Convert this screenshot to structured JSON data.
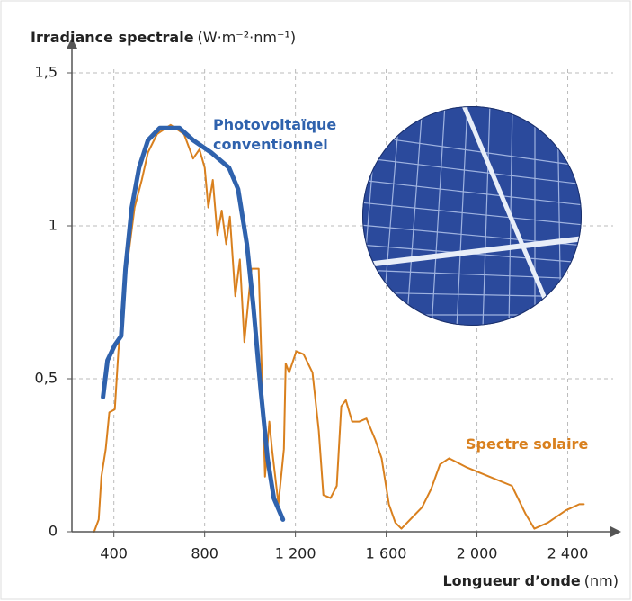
{
  "chart_data": {
    "type": "line",
    "y_label": "Irradiance spectrale",
    "y_unit": "(W·m⁻²·nm⁻¹)",
    "x_label": "Longueur d’onde",
    "x_unit": "(nm)",
    "xlim": [
      215,
      2600
    ],
    "ylim": [
      0,
      1.6
    ],
    "xticks": [
      400,
      800,
      {
        "value": 1200,
        "label": "1 200"
      },
      {
        "value": 1600,
        "label": "1 600"
      },
      {
        "value": 2000,
        "label": "2 000"
      },
      {
        "value": 2400,
        "label": "2 400"
      }
    ],
    "yticks": [
      {
        "value": 0,
        "label": "0"
      },
      {
        "value": 0.5,
        "label": "0,5"
      },
      {
        "value": 1,
        "label": "1"
      },
      {
        "value": 1.5,
        "label": "1,5"
      }
    ],
    "grid": true,
    "series": [
      {
        "name": "Spectre solaire",
        "color": "#d9801e",
        "x": [
          313,
          333,
          345,
          364,
          380,
          404,
          420,
          451,
          491,
          523,
          550,
          590,
          650,
          709,
          749,
          777,
          800,
          816,
          836,
          856,
          875,
          895,
          911,
          935,
          955,
          975,
          1006,
          1038,
          1066,
          1085,
          1097,
          1125,
          1149,
          1157,
          1172,
          1204,
          1236,
          1275,
          1303,
          1323,
          1355,
          1382,
          1402,
          1422,
          1450,
          1481,
          1513,
          1552,
          1580,
          1612,
          1640,
          1667,
          1719,
          1758,
          1798,
          1837,
          1877,
          1956,
          2055,
          2154,
          2213,
          2253,
          2313,
          2392,
          2451,
          2471
        ],
        "values": [
          0.0,
          0.04,
          0.18,
          0.27,
          0.39,
          0.4,
          0.59,
          0.83,
          1.06,
          1.15,
          1.24,
          1.3,
          1.33,
          1.3,
          1.22,
          1.25,
          1.19,
          1.06,
          1.15,
          0.97,
          1.05,
          0.94,
          1.03,
          0.77,
          0.89,
          0.62,
          0.86,
          0.86,
          0.18,
          0.36,
          0.27,
          0.09,
          0.27,
          0.55,
          0.52,
          0.59,
          0.58,
          0.52,
          0.33,
          0.12,
          0.11,
          0.15,
          0.41,
          0.43,
          0.36,
          0.36,
          0.37,
          0.3,
          0.24,
          0.09,
          0.03,
          0.01,
          0.05,
          0.08,
          0.14,
          0.22,
          0.24,
          0.21,
          0.18,
          0.15,
          0.06,
          0.01,
          0.03,
          0.07,
          0.09,
          0.09
        ]
      },
      {
        "name": "Photovoltaïque conventionnel",
        "color": "#2f62ad",
        "x": [
          352,
          372,
          404,
          432,
          451,
          479,
          511,
          550,
          602,
          689,
          749,
          828,
          907,
          947,
          986,
          1014,
          1046,
          1077,
          1105,
          1145
        ],
        "values": [
          0.44,
          0.56,
          0.61,
          0.64,
          0.86,
          1.06,
          1.19,
          1.28,
          1.32,
          1.32,
          1.28,
          1.24,
          1.19,
          1.12,
          0.94,
          0.74,
          0.47,
          0.24,
          0.11,
          0.04
        ]
      }
    ]
  }
}
